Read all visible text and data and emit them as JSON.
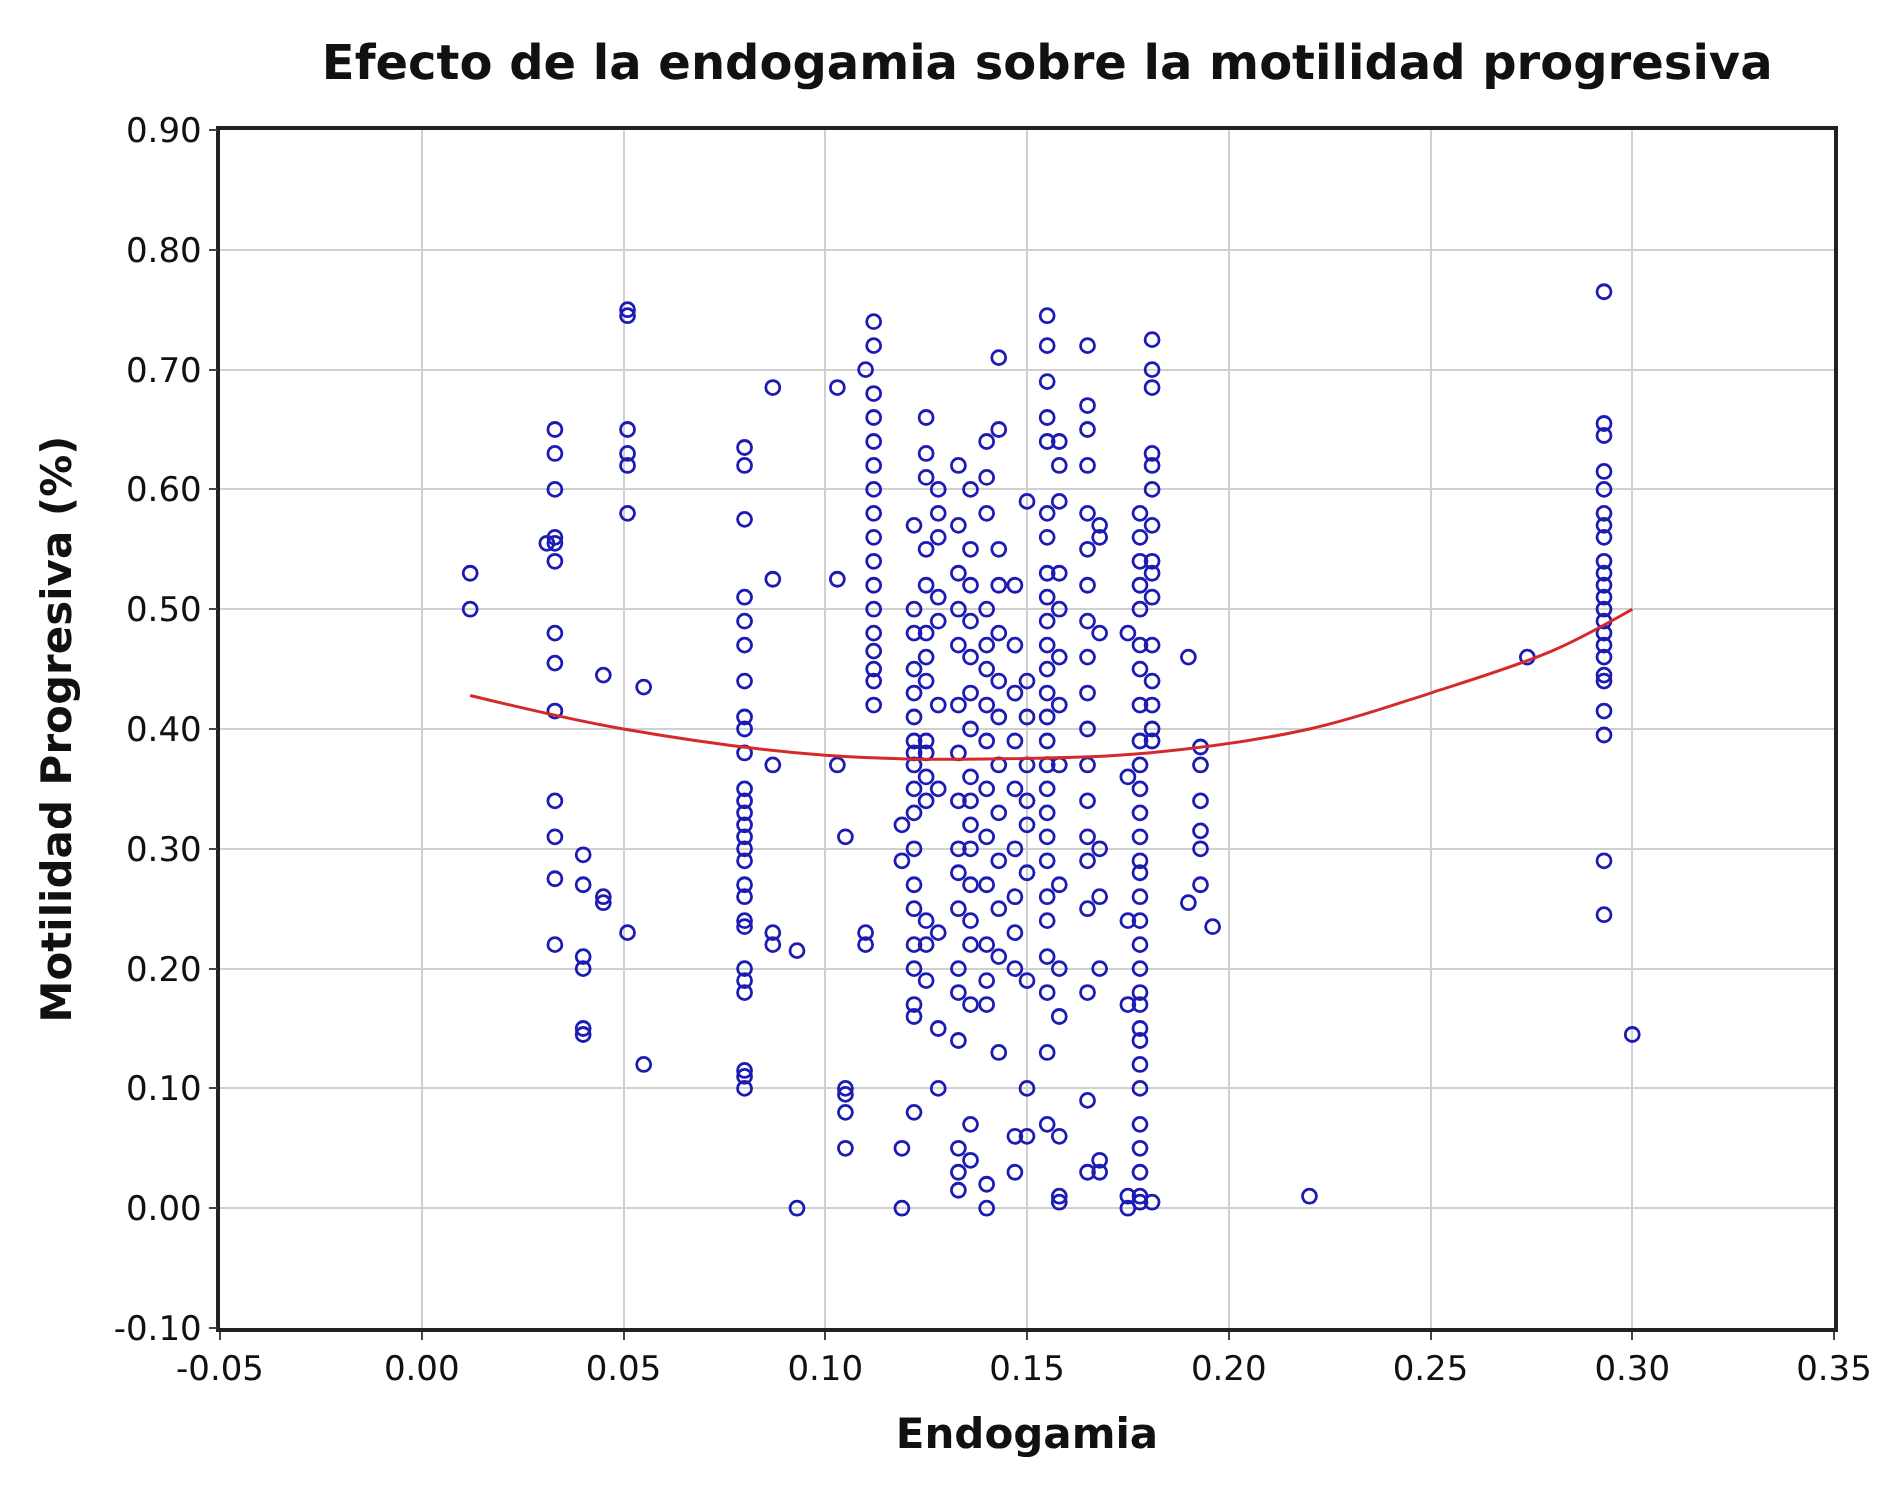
{
  "chart_data": {
    "type": "scatter",
    "title": "Efecto de la endogamia sobre la motilidad progresiva",
    "xlabel": "Endogamia",
    "ylabel": "Motilidad Progresiva (%)",
    "xlim": [
      -0.05,
      0.35
    ],
    "ylim": [
      -0.1,
      0.9
    ],
    "xticks": [
      {
        "value": -0.05,
        "label": "-0.05"
      },
      {
        "value": 0,
        "label": "0.00"
      },
      {
        "value": 0.05,
        "label": "0.05"
      },
      {
        "value": 0.1,
        "label": "0.10"
      },
      {
        "value": 0.15,
        "label": "0.15"
      },
      {
        "value": 0.2,
        "label": "0.20"
      },
      {
        "value": 0.25,
        "label": "0.25"
      },
      {
        "value": 0.3,
        "label": "0.30"
      },
      {
        "value": 0.35,
        "label": "0.35"
      }
    ],
    "yticks": [
      {
        "value": -0.1,
        "label": "-0.10"
      },
      {
        "value": 0,
        "label": "0.00"
      },
      {
        "value": 0.1,
        "label": "0.10"
      },
      {
        "value": 0.2,
        "label": "0.20"
      },
      {
        "value": 0.3,
        "label": "0.30"
      },
      {
        "value": 0.4,
        "label": "0.40"
      },
      {
        "value": 0.5,
        "label": "0.50"
      },
      {
        "value": 0.6,
        "label": "0.60"
      },
      {
        "value": 0.7,
        "label": "0.70"
      },
      {
        "value": 0.8,
        "label": "0.80"
      },
      {
        "value": 0.9,
        "label": "0.90"
      }
    ],
    "grid": true,
    "marker": "circle",
    "series": [
      {
        "color": "#1c1cb4",
        "x": [
          0.012,
          0.012,
          0.033,
          0.033,
          0.033,
          0.033,
          0.033,
          0.033,
          0.033,
          0.033,
          0.033,
          0.033,
          0.033,
          0.033,
          0.033,
          0.031,
          0.04,
          0.04,
          0.04,
          0.04,
          0.04,
          0.04,
          0.045,
          0.045,
          0.045,
          0.051,
          0.051,
          0.051,
          0.051,
          0.051,
          0.051,
          0.051,
          0.055,
          0.055,
          0.08,
          0.08,
          0.08,
          0.08,
          0.08,
          0.08,
          0.08,
          0.08,
          0.08,
          0.08,
          0.08,
          0.08,
          0.08,
          0.08,
          0.08,
          0.08,
          0.08,
          0.08,
          0.08,
          0.08,
          0.08,
          0.08,
          0.08,
          0.08,
          0.08,
          0.08,
          0.08,
          0.087,
          0.087,
          0.087,
          0.087,
          0.087,
          0.093,
          0.093,
          0.103,
          0.103,
          0.103,
          0.105,
          0.105,
          0.105,
          0.105,
          0.105,
          0.112,
          0.112,
          0.112,
          0.112,
          0.112,
          0.112,
          0.112,
          0.112,
          0.112,
          0.112,
          0.112,
          0.112,
          0.112,
          0.112,
          0.112,
          0.112,
          0.112,
          0.11,
          0.11,
          0.11,
          0.119,
          0.119,
          0.119,
          0.119,
          0.122,
          0.122,
          0.122,
          0.122,
          0.122,
          0.122,
          0.122,
          0.122,
          0.122,
          0.122,
          0.122,
          0.122,
          0.122,
          0.122,
          0.122,
          0.122,
          0.122,
          0.122,
          0.122,
          0.125,
          0.125,
          0.125,
          0.125,
          0.125,
          0.125,
          0.125,
          0.125,
          0.125,
          0.125,
          0.125,
          0.125,
          0.125,
          0.125,
          0.125,
          0.128,
          0.128,
          0.128,
          0.128,
          0.128,
          0.128,
          0.128,
          0.128,
          0.128,
          0.128,
          0.133,
          0.133,
          0.133,
          0.133,
          0.133,
          0.133,
          0.133,
          0.133,
          0.133,
          0.133,
          0.133,
          0.133,
          0.133,
          0.133,
          0.133,
          0.133,
          0.133,
          0.136,
          0.136,
          0.136,
          0.136,
          0.136,
          0.136,
          0.136,
          0.136,
          0.136,
          0.136,
          0.136,
          0.136,
          0.136,
          0.136,
          0.136,
          0.136,
          0.136,
          0.14,
          0.14,
          0.14,
          0.14,
          0.14,
          0.14,
          0.14,
          0.14,
          0.14,
          0.14,
          0.14,
          0.14,
          0.14,
          0.14,
          0.14,
          0.14,
          0.143,
          0.143,
          0.143,
          0.143,
          0.143,
          0.143,
          0.143,
          0.143,
          0.143,
          0.143,
          0.143,
          0.143,
          0.143,
          0.147,
          0.147,
          0.147,
          0.147,
          0.147,
          0.147,
          0.147,
          0.147,
          0.147,
          0.147,
          0.147,
          0.15,
          0.15,
          0.15,
          0.15,
          0.15,
          0.15,
          0.15,
          0.15,
          0.15,
          0.15,
          0.155,
          0.155,
          0.155,
          0.155,
          0.155,
          0.155,
          0.155,
          0.155,
          0.155,
          0.155,
          0.155,
          0.155,
          0.155,
          0.155,
          0.155,
          0.155,
          0.155,
          0.155,
          0.155,
          0.155,
          0.155,
          0.155,
          0.155,
          0.155,
          0.155,
          0.155,
          0.158,
          0.158,
          0.158,
          0.158,
          0.158,
          0.158,
          0.158,
          0.158,
          0.158,
          0.158,
          0.158,
          0.158,
          0.158,
          0.158,
          0.165,
          0.165,
          0.165,
          0.165,
          0.165,
          0.165,
          0.165,
          0.165,
          0.165,
          0.165,
          0.165,
          0.165,
          0.165,
          0.165,
          0.165,
          0.165,
          0.165,
          0.165,
          0.165,
          0.168,
          0.168,
          0.168,
          0.168,
          0.168,
          0.168,
          0.168,
          0.168,
          0.175,
          0.175,
          0.175,
          0.175,
          0.175,
          0.175,
          0.178,
          0.178,
          0.178,
          0.178,
          0.178,
          0.178,
          0.178,
          0.178,
          0.178,
          0.178,
          0.178,
          0.178,
          0.178,
          0.178,
          0.178,
          0.178,
          0.178,
          0.178,
          0.178,
          0.178,
          0.178,
          0.178,
          0.178,
          0.178,
          0.178,
          0.178,
          0.178,
          0.178,
          0.178,
          0.178,
          0.181,
          0.181,
          0.181,
          0.181,
          0.181,
          0.181,
          0.181,
          0.181,
          0.181,
          0.181,
          0.181,
          0.181,
          0.181,
          0.181,
          0.181,
          0.181,
          0.19,
          0.19,
          0.193,
          0.193,
          0.193,
          0.193,
          0.193,
          0.193,
          0.196,
          0.22,
          0.274,
          0.293,
          0.293,
          0.293,
          0.293,
          0.293,
          0.293,
          0.293,
          0.293,
          0.293,
          0.293,
          0.293,
          0.293,
          0.293,
          0.293,
          0.293,
          0.293,
          0.293,
          0.293,
          0.293,
          0.293,
          0.293,
          0.293,
          0.293,
          0.3
        ],
        "values": [
          0.53,
          0.5,
          0.65,
          0.63,
          0.6,
          0.56,
          0.555,
          0.54,
          0.48,
          0.455,
          0.415,
          0.34,
          0.31,
          0.275,
          0.22,
          0.555,
          0.295,
          0.27,
          0.21,
          0.2,
          0.15,
          0.145,
          0.445,
          0.26,
          0.255,
          0.75,
          0.745,
          0.65,
          0.63,
          0.62,
          0.58,
          0.23,
          0.435,
          0.12,
          0.635,
          0.62,
          0.575,
          0.51,
          0.49,
          0.47,
          0.44,
          0.41,
          0.4,
          0.38,
          0.35,
          0.34,
          0.33,
          0.32,
          0.31,
          0.3,
          0.29,
          0.27,
          0.26,
          0.24,
          0.235,
          0.2,
          0.19,
          0.18,
          0.115,
          0.11,
          0.1,
          0.685,
          0.525,
          0.37,
          0.23,
          0.22,
          0.215,
          0.0,
          0.685,
          0.525,
          0.37,
          0.31,
          0.1,
          0.095,
          0.08,
          0.05,
          0.74,
          0.72,
          0.68,
          0.66,
          0.64,
          0.62,
          0.6,
          0.58,
          0.56,
          0.54,
          0.52,
          0.5,
          0.48,
          0.465,
          0.45,
          0.44,
          0.42,
          0.7,
          0.23,
          0.22,
          0.05,
          0.0,
          0.29,
          0.32,
          0.57,
          0.5,
          0.48,
          0.45,
          0.43,
          0.41,
          0.39,
          0.38,
          0.37,
          0.35,
          0.33,
          0.3,
          0.27,
          0.25,
          0.22,
          0.2,
          0.17,
          0.16,
          0.08,
          0.66,
          0.63,
          0.61,
          0.55,
          0.52,
          0.48,
          0.46,
          0.44,
          0.39,
          0.38,
          0.36,
          0.34,
          0.24,
          0.22,
          0.19,
          0.6,
          0.58,
          0.56,
          0.51,
          0.49,
          0.42,
          0.35,
          0.23,
          0.15,
          0.1,
          0.62,
          0.57,
          0.53,
          0.5,
          0.47,
          0.42,
          0.38,
          0.34,
          0.3,
          0.28,
          0.25,
          0.2,
          0.18,
          0.14,
          0.05,
          0.03,
          0.015,
          0.6,
          0.55,
          0.52,
          0.49,
          0.46,
          0.43,
          0.4,
          0.36,
          0.34,
          0.32,
          0.3,
          0.27,
          0.24,
          0.22,
          0.17,
          0.07,
          0.04,
          0.64,
          0.61,
          0.58,
          0.5,
          0.47,
          0.45,
          0.42,
          0.39,
          0.35,
          0.31,
          0.27,
          0.22,
          0.19,
          0.17,
          0.02,
          0.0,
          0.71,
          0.65,
          0.55,
          0.52,
          0.48,
          0.44,
          0.41,
          0.37,
          0.33,
          0.29,
          0.25,
          0.21,
          0.13,
          0.52,
          0.47,
          0.43,
          0.39,
          0.35,
          0.3,
          0.26,
          0.23,
          0.2,
          0.06,
          0.03,
          0.59,
          0.44,
          0.41,
          0.37,
          0.34,
          0.32,
          0.28,
          0.19,
          0.1,
          0.06,
          0.745,
          0.72,
          0.69,
          0.66,
          0.64,
          0.58,
          0.56,
          0.53,
          0.51,
          0.49,
          0.47,
          0.45,
          0.43,
          0.41,
          0.39,
          0.37,
          0.35,
          0.33,
          0.31,
          0.29,
          0.26,
          0.24,
          0.21,
          0.18,
          0.13,
          0.07,
          0.64,
          0.62,
          0.59,
          0.53,
          0.5,
          0.46,
          0.42,
          0.37,
          0.27,
          0.2,
          0.16,
          0.06,
          0.01,
          0.005,
          0.72,
          0.67,
          0.65,
          0.62,
          0.58,
          0.55,
          0.52,
          0.49,
          0.46,
          0.43,
          0.4,
          0.37,
          0.34,
          0.31,
          0.29,
          0.25,
          0.18,
          0.09,
          0.03,
          0.57,
          0.56,
          0.48,
          0.3,
          0.26,
          0.2,
          0.04,
          0.03,
          0.48,
          0.36,
          0.24,
          0.17,
          0.01,
          0.0,
          0.58,
          0.56,
          0.54,
          0.52,
          0.5,
          0.47,
          0.45,
          0.42,
          0.39,
          0.37,
          0.35,
          0.33,
          0.31,
          0.29,
          0.28,
          0.26,
          0.24,
          0.22,
          0.2,
          0.18,
          0.17,
          0.15,
          0.14,
          0.12,
          0.1,
          0.07,
          0.05,
          0.03,
          0.01,
          0.005,
          0.725,
          0.7,
          0.685,
          0.63,
          0.62,
          0.6,
          0.57,
          0.54,
          0.53,
          0.51,
          0.47,
          0.44,
          0.42,
          0.4,
          0.39,
          0.005,
          0.46,
          0.255,
          0.385,
          0.37,
          0.34,
          0.315,
          0.3,
          0.27,
          0.235,
          0.01,
          0.46,
          0.765,
          0.655,
          0.645,
          0.615,
          0.6,
          0.58,
          0.57,
          0.56,
          0.54,
          0.53,
          0.52,
          0.51,
          0.5,
          0.49,
          0.48,
          0.47,
          0.46,
          0.445,
          0.44,
          0.415,
          0.395,
          0.29,
          0.245,
          0.145
        ]
      },
      {
        "type": "line",
        "color": "#d42a2a",
        "marker": "none",
        "line_style": "solid",
        "x": [
          0.012,
          0.05,
          0.1,
          0.14,
          0.18,
          0.22,
          0.25,
          0.28,
          0.3
        ],
        "values": [
          0.428,
          0.4,
          0.378,
          0.375,
          0.38,
          0.4,
          0.43,
          0.465,
          0.5
        ]
      }
    ]
  }
}
